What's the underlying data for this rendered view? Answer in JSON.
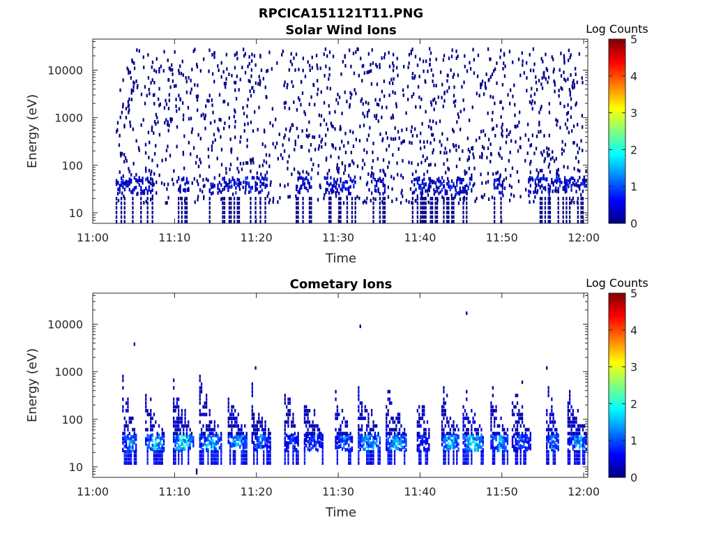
{
  "figure": {
    "title": "RPCICA151121T11.PNG"
  },
  "colormap": [
    "#00007f",
    "#0000ff",
    "#007fff",
    "#00ffff",
    "#7fff7f",
    "#ffff00",
    "#ff7f00",
    "#ff0000",
    "#7f0000"
  ],
  "chart_data": [
    {
      "type": "heatmap",
      "title": "Solar Wind Ions",
      "xlabel": "Time",
      "ylabel": "Energy (eV)",
      "x_range_minutes": [
        0,
        60.5
      ],
      "x_ticks": [
        0,
        10,
        20,
        30,
        40,
        50,
        60
      ],
      "x_tick_labels": [
        "11:00",
        "11:10",
        "11:20",
        "11:30",
        "11:40",
        "11:50",
        "12:00"
      ],
      "yscale": "log",
      "ylim": [
        6,
        45000
      ],
      "y_ticks": [
        10,
        100,
        1000,
        10000
      ],
      "y_tick_labels": [
        "10",
        "100",
        "1000",
        "10000"
      ],
      "colorbar": {
        "label": "Log Counts",
        "range": [
          0,
          5
        ],
        "ticks": [
          0,
          1,
          2,
          3,
          4,
          5
        ],
        "tick_labels": [
          "0",
          "1",
          "2",
          "3",
          "4",
          "5"
        ]
      },
      "data_start_minute": 2.8,
      "dominant_band_eV": [
        25,
        55
      ],
      "typical_log_counts": [
        0.1,
        1.0
      ],
      "description_of_cells": "sparse single-count cells 10–30000 eV across whole interval; denser band near 30–50 eV"
    },
    {
      "type": "heatmap",
      "title": "Cometary Ions",
      "xlabel": "Time",
      "ylabel": "Energy (eV)",
      "x_range_minutes": [
        0,
        60.5
      ],
      "x_ticks": [
        0,
        10,
        20,
        30,
        40,
        50,
        60
      ],
      "x_tick_labels": [
        "11:00",
        "11:10",
        "11:20",
        "11:30",
        "11:40",
        "11:50",
        "12:00"
      ],
      "yscale": "log",
      "ylim": [
        6,
        45000
      ],
      "y_ticks": [
        10,
        100,
        1000,
        10000
      ],
      "y_tick_labels": [
        "10",
        "100",
        "1000",
        "10000"
      ],
      "colorbar": {
        "label": "Log Counts",
        "range": [
          0,
          5
        ],
        "ticks": [
          0,
          1,
          2,
          3,
          4,
          5
        ],
        "tick_labels": [
          "0",
          "1",
          "2",
          "3",
          "4",
          "5"
        ]
      },
      "bursts": [
        {
          "start_min": 3.6,
          "end_min": 5.4,
          "peak_log": 1.8
        },
        {
          "start_min": 6.4,
          "end_min": 8.7,
          "peak_log": 2.2
        },
        {
          "start_min": 9.8,
          "end_min": 12.2,
          "peak_log": 2.4
        },
        {
          "start_min": 13.0,
          "end_min": 15.6,
          "peak_log": 2.2
        },
        {
          "start_min": 16.5,
          "end_min": 18.8,
          "peak_log": 2.0
        },
        {
          "start_min": 19.4,
          "end_min": 21.6,
          "peak_log": 1.6
        },
        {
          "start_min": 23.4,
          "end_min": 25.0,
          "peak_log": 1.2
        },
        {
          "start_min": 25.8,
          "end_min": 28.0,
          "peak_log": 1.4
        },
        {
          "start_min": 29.6,
          "end_min": 31.6,
          "peak_log": 1.6
        },
        {
          "start_min": 32.4,
          "end_min": 35.2,
          "peak_log": 2.0
        },
        {
          "start_min": 35.8,
          "end_min": 38.4,
          "peak_log": 2.0
        },
        {
          "start_min": 39.6,
          "end_min": 41.2,
          "peak_log": 1.2
        },
        {
          "start_min": 42.6,
          "end_min": 44.8,
          "peak_log": 2.2
        },
        {
          "start_min": 45.2,
          "end_min": 47.8,
          "peak_log": 2.4
        },
        {
          "start_min": 48.6,
          "end_min": 50.8,
          "peak_log": 1.8
        },
        {
          "start_min": 51.2,
          "end_min": 53.6,
          "peak_log": 1.4
        },
        {
          "start_min": 55.4,
          "end_min": 57.0,
          "peak_log": 1.6
        },
        {
          "start_min": 58.0,
          "end_min": 60.4,
          "peak_log": 2.0
        }
      ],
      "band_center_eV": 35,
      "isolated_high_energy_counts_eV": [
        3800,
        1200,
        9000,
        17000,
        600,
        1200
      ]
    }
  ]
}
